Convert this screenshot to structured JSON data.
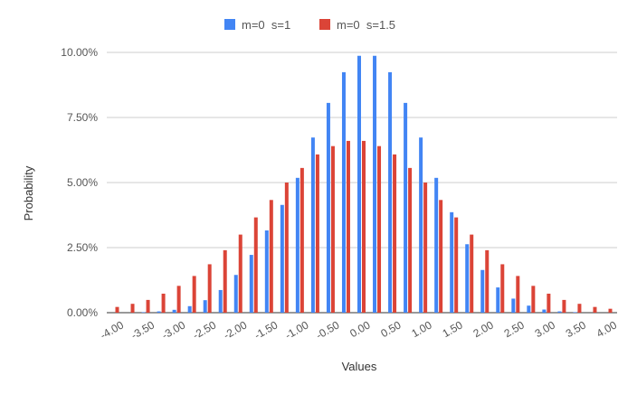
{
  "chart_data": {
    "type": "bar",
    "xlabel": "Values",
    "ylabel": "Probability",
    "ylim": [
      0,
      10
    ],
    "y_ticks": [
      0,
      2.5,
      5,
      7.5,
      10
    ],
    "y_tick_labels": [
      "0.00%",
      "2.50%",
      "5.00%",
      "7.50%",
      "10.00%"
    ],
    "x_tick_labels": [
      "-4.00",
      "-3.50",
      "-3.00",
      "-2.50",
      "-2.00",
      "-1.50",
      "-1.00",
      "-0.50",
      "0.00",
      "0.50",
      "1.00",
      "1.50",
      "2.00",
      "2.50",
      "3.00",
      "3.50",
      "4.00"
    ],
    "grid": true,
    "legend_position": "top",
    "categories": [
      "-4.00",
      "-3.75",
      "-3.50",
      "-3.25",
      "-3.00",
      "-2.75",
      "-2.50",
      "-2.25",
      "-2.00",
      "-1.75",
      "-1.50",
      "-1.25",
      "-1.00",
      "-0.75",
      "-0.50",
      "-0.25",
      "0.00",
      "0.25",
      "0.50",
      "0.75",
      "1.00",
      "1.25",
      "1.50",
      "1.75",
      "2.00",
      "2.25",
      "2.50",
      "2.75",
      "3.00",
      "3.25",
      "3.50",
      "3.75",
      "4.00"
    ],
    "series": [
      {
        "name": "m=0  s=1",
        "color": "#4285F4",
        "values": [
          0.0,
          0.0,
          0.02,
          0.05,
          0.11,
          0.25,
          0.48,
          0.87,
          1.45,
          2.22,
          3.16,
          4.14,
          5.18,
          6.73,
          8.06,
          9.24,
          9.87,
          9.87,
          9.24,
          8.06,
          6.73,
          5.18,
          3.86,
          2.63,
          1.64,
          0.97,
          0.54,
          0.27,
          0.12,
          0.05,
          0.02,
          0.0,
          0.0
        ]
      },
      {
        "name": "m=0  s=1.5",
        "color": "#DB4437",
        "values": [
          0.22,
          0.34,
          0.49,
          0.73,
          1.03,
          1.41,
          1.86,
          2.4,
          3.0,
          3.66,
          4.33,
          5.0,
          5.56,
          6.08,
          6.4,
          6.6,
          6.6,
          6.4,
          6.08,
          5.56,
          5.0,
          4.33,
          3.66,
          3.0,
          2.4,
          1.86,
          1.41,
          1.03,
          0.73,
          0.49,
          0.34,
          0.22,
          0.15
        ]
      }
    ]
  }
}
